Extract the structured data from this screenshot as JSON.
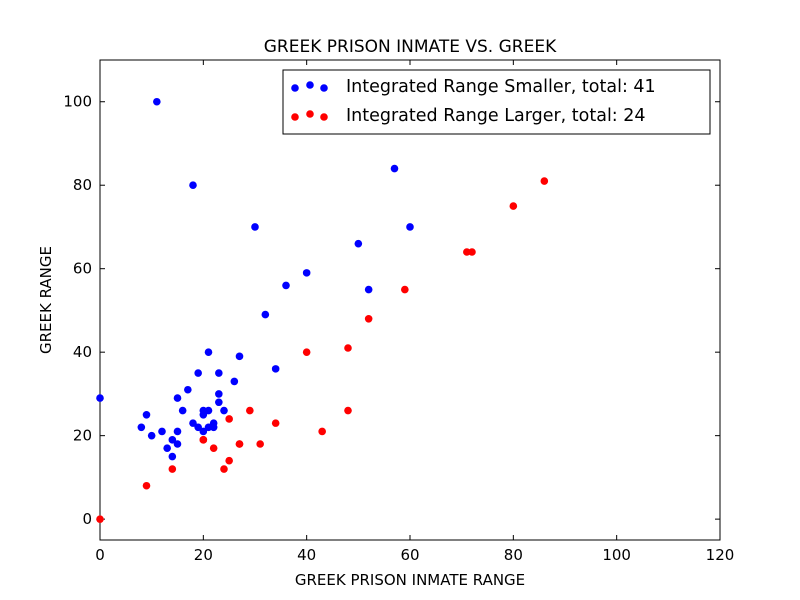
{
  "chart_data": {
    "type": "scatter",
    "title": "GREEK PRISON INMATE VS. GREEK",
    "xlabel": "GREEK PRISON INMATE RANGE",
    "ylabel": "GREEK RANGE",
    "xlim": [
      0,
      120
    ],
    "ylim": [
      -5,
      110
    ],
    "xticks": [
      0,
      20,
      40,
      60,
      80,
      100,
      120
    ],
    "yticks": [
      0,
      20,
      40,
      60,
      80,
      100
    ],
    "grid": false,
    "legend_position": "top-right",
    "series": [
      {
        "name": "Integrated Range Smaller, total: 41",
        "color": "#0000ff",
        "points": [
          [
            0,
            29
          ],
          [
            8,
            22
          ],
          [
            9,
            25
          ],
          [
            10,
            20
          ],
          [
            11,
            100
          ],
          [
            12,
            21
          ],
          [
            13,
            17
          ],
          [
            14,
            15
          ],
          [
            14,
            19
          ],
          [
            15,
            18
          ],
          [
            15,
            21
          ],
          [
            15,
            29
          ],
          [
            17,
            31
          ],
          [
            18,
            80
          ],
          [
            18,
            23
          ],
          [
            19,
            35
          ],
          [
            19,
            22
          ],
          [
            20,
            21
          ],
          [
            20,
            25
          ],
          [
            21,
            22
          ],
          [
            21,
            26
          ],
          [
            21,
            40
          ],
          [
            22,
            23
          ],
          [
            23,
            35
          ],
          [
            23,
            30
          ],
          [
            23,
            28
          ],
          [
            24,
            26
          ],
          [
            26,
            33
          ],
          [
            27,
            39
          ],
          [
            30,
            70
          ],
          [
            32,
            49
          ],
          [
            34,
            36
          ],
          [
            36,
            56
          ],
          [
            40,
            59
          ],
          [
            50,
            66
          ],
          [
            52,
            55
          ],
          [
            57,
            84
          ],
          [
            60,
            70
          ],
          [
            20,
            26
          ],
          [
            22,
            22
          ],
          [
            16,
            26
          ]
        ]
      },
      {
        "name": "Integrated Range Larger, total: 24",
        "color": "#ff0000",
        "points": [
          [
            0,
            0
          ],
          [
            9,
            8
          ],
          [
            14,
            12
          ],
          [
            20,
            19
          ],
          [
            22,
            17
          ],
          [
            24,
            12
          ],
          [
            25,
            14
          ],
          [
            25,
            24
          ],
          [
            27,
            18
          ],
          [
            29,
            26
          ],
          [
            31,
            18
          ],
          [
            34,
            23
          ],
          [
            40,
            40
          ],
          [
            43,
            21
          ],
          [
            48,
            41
          ],
          [
            48,
            26
          ],
          [
            52,
            48
          ],
          [
            59,
            55
          ],
          [
            71,
            64
          ],
          [
            72,
            64
          ],
          [
            80,
            75
          ],
          [
            86,
            81
          ],
          [
            27,
            18
          ],
          [
            20,
            19
          ]
        ]
      }
    ]
  }
}
